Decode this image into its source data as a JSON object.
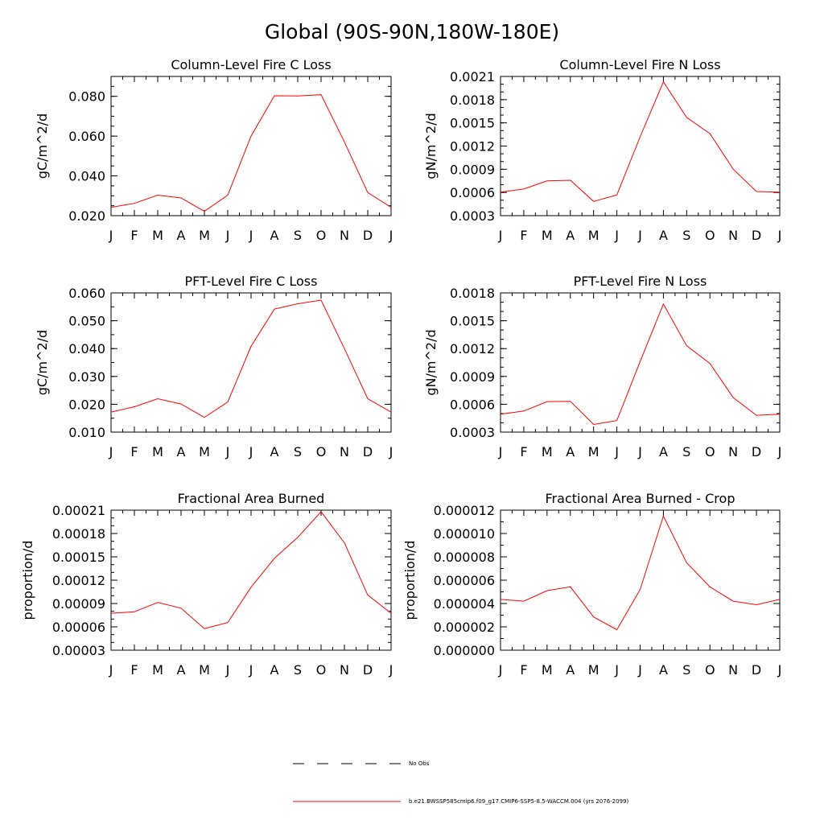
{
  "figure": {
    "title": "Global (90S-90N,180W-180E)"
  },
  "legend": {
    "entries": [
      {
        "label": "No Obs",
        "style": "dashed",
        "color": "#000000"
      },
      {
        "label": "b.e21.BWSSP585cmip6.f09_g17.CMIP6-SSP5-8.5-WACCM.004 (yrs 2076-2099)",
        "style": "solid",
        "color": "#ff0000"
      }
    ]
  },
  "chart_data": [
    {
      "type": "line",
      "title": "Column-Level Fire C Loss",
      "ylabel": "gC/m^2/d",
      "categories": [
        "J",
        "F",
        "M",
        "A",
        "M",
        "J",
        "J",
        "A",
        "S",
        "O",
        "N",
        "D",
        "J"
      ],
      "ylim": [
        0.02,
        0.09
      ],
      "yticks": [
        0.02,
        0.04,
        0.06,
        0.08
      ],
      "ytick_labels": [
        "0.020",
        "0.040",
        "0.060",
        "0.080"
      ],
      "yminor": 0.005,
      "grid": false,
      "series": [
        {
          "color": "#ff0000",
          "values": [
            0.0242,
            0.0262,
            0.0303,
            0.0289,
            0.0222,
            0.0303,
            0.06,
            0.0803,
            0.0802,
            0.0808,
            0.0571,
            0.0316,
            0.0242
          ]
        }
      ]
    },
    {
      "type": "line",
      "title": "Column-Level Fire N Loss",
      "ylabel": "gN/m^2/d",
      "categories": [
        "J",
        "F",
        "M",
        "A",
        "M",
        "J",
        "J",
        "A",
        "S",
        "O",
        "N",
        "D",
        "J"
      ],
      "ylim": [
        0.0003,
        0.0021
      ],
      "yticks": [
        0.0003,
        0.0006,
        0.0009,
        0.0012,
        0.0015,
        0.0018,
        0.0021
      ],
      "ytick_labels": [
        "0.0003",
        "0.0006",
        "0.0009",
        "0.0012",
        "0.0015",
        "0.0018",
        "0.0021"
      ],
      "yminor": 0.0001,
      "grid": false,
      "series": [
        {
          "color": "#ff0000",
          "values": [
            0.000604,
            0.000644,
            0.000749,
            0.000758,
            0.000484,
            0.000568,
            0.00132,
            0.00203,
            0.00157,
            0.00136,
            0.0009,
            0.000612,
            0.000604
          ]
        }
      ]
    },
    {
      "type": "line",
      "title": "PFT-Level Fire C Loss",
      "ylabel": "gC/m^2/d",
      "categories": [
        "J",
        "F",
        "M",
        "A",
        "M",
        "J",
        "J",
        "A",
        "S",
        "O",
        "N",
        "D",
        "J"
      ],
      "ylim": [
        0.01,
        0.06
      ],
      "yticks": [
        0.01,
        0.02,
        0.03,
        0.04,
        0.05,
        0.06
      ],
      "ytick_labels": [
        "0.010",
        "0.020",
        "0.030",
        "0.040",
        "0.050",
        "0.060"
      ],
      "yminor": 0.005,
      "grid": false,
      "series": [
        {
          "color": "#ff0000",
          "values": [
            0.0172,
            0.0191,
            0.022,
            0.0201,
            0.0153,
            0.0208,
            0.0408,
            0.0542,
            0.0561,
            0.0574,
            0.04,
            0.022,
            0.0172
          ]
        }
      ]
    },
    {
      "type": "line",
      "title": "PFT-Level Fire N Loss",
      "ylabel": "gN/m^2/d",
      "categories": [
        "J",
        "F",
        "M",
        "A",
        "M",
        "J",
        "J",
        "A",
        "S",
        "O",
        "N",
        "D",
        "J"
      ],
      "ylim": [
        0.0003,
        0.0018
      ],
      "yticks": [
        0.0003,
        0.0006,
        0.0009,
        0.0012,
        0.0015,
        0.0018
      ],
      "ytick_labels": [
        "0.0003",
        "0.0006",
        "0.0009",
        "0.0012",
        "0.0015",
        "0.0018"
      ],
      "yminor": 0.0001,
      "grid": false,
      "series": [
        {
          "color": "#ff0000",
          "values": [
            0.000493,
            0.000527,
            0.000629,
            0.000632,
            0.000382,
            0.000425,
            0.00106,
            0.00168,
            0.00123,
            0.00104,
            0.000671,
            0.000481,
            0.000493
          ]
        }
      ]
    },
    {
      "type": "line",
      "title": "Fractional Area Burned",
      "ylabel": "proportion/d",
      "categories": [
        "J",
        "F",
        "M",
        "A",
        "M",
        "J",
        "J",
        "A",
        "S",
        "O",
        "N",
        "D",
        "J"
      ],
      "ylim": [
        3e-05,
        0.00021
      ],
      "yticks": [
        3e-05,
        6e-05,
        9e-05,
        0.00012,
        0.00015,
        0.00018,
        0.00021
      ],
      "ytick_labels": [
        "0.00003",
        "0.00006",
        "0.00009",
        "0.00012",
        "0.00015",
        "0.00018",
        "0.00021"
      ],
      "yminor": 1e-05,
      "grid": false,
      "series": [
        {
          "color": "#ff0000",
          "values": [
            7.75e-05,
            7.93e-05,
            9.13e-05,
            8.4e-05,
            5.77e-05,
            6.56e-05,
            0.000111,
            0.000148,
            0.000175,
            0.000208,
            0.000168,
            0.000101,
            7.75e-05
          ]
        }
      ]
    },
    {
      "type": "line",
      "title": "Fractional Area Burned - Crop",
      "ylabel": "proportion/d",
      "categories": [
        "J",
        "F",
        "M",
        "A",
        "M",
        "J",
        "J",
        "A",
        "S",
        "O",
        "N",
        "D",
        "J"
      ],
      "ylim": [
        0,
        1.2e-05
      ],
      "yticks": [
        0,
        2e-06,
        4e-06,
        6e-06,
        8e-06,
        1e-05,
        1.2e-05
      ],
      "ytick_labels": [
        "0.000000",
        "0.000002",
        "0.000004",
        "0.000006",
        "0.000008",
        "0.000010",
        "0.000012"
      ],
      "yminor": 1e-06,
      "grid": false,
      "series": [
        {
          "color": "#ff0000",
          "values": [
            4.35e-06,
            4.2e-06,
            5.1e-06,
            5.43e-06,
            2.85e-06,
            1.75e-06,
            5.2e-06,
            1.15e-05,
            7.5e-06,
            5.43e-06,
            4.2e-06,
            3.9e-06,
            4.35e-06
          ]
        }
      ]
    }
  ]
}
